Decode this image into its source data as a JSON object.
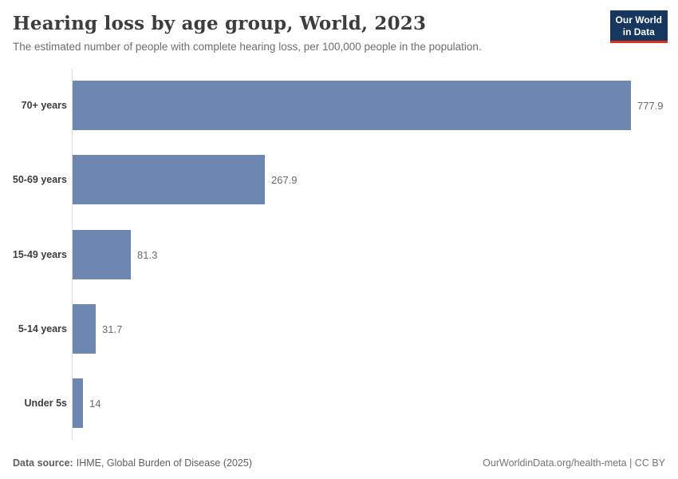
{
  "logo": {
    "line1": "Our World",
    "line2": "in Data"
  },
  "footer": {
    "source_label": "Data source:",
    "source_value": "IHME, Global Burden of Disease (2025)",
    "attribution_link": "OurWorldinData.org/health-meta",
    "attribution_separator": " | ",
    "attribution_license": "CC BY"
  },
  "colors": {
    "bar": "#6e87b0",
    "axis_line": "#dcdcdc",
    "logo_background": "#18375f",
    "logo_stripe": "#d8341f"
  },
  "chart_data": {
    "type": "bar",
    "orientation": "horizontal",
    "title": "Hearing loss by age group, World, 2023",
    "subtitle": "The estimated number of people with complete hearing loss, per 100,000 people in the population.",
    "categories": [
      "70+ years",
      "50-69 years",
      "15-49 years",
      "5-14 years",
      "Under 5s"
    ],
    "values": [
      777.9,
      267.9,
      81.3,
      31.7,
      14
    ],
    "value_labels": [
      "777.9",
      "267.9",
      "81.3",
      "31.7",
      "14"
    ],
    "xlim": [
      0,
      777.9
    ],
    "grid": false,
    "legend": "none",
    "value_label_position": "outside-end",
    "category_label_position": "left"
  }
}
